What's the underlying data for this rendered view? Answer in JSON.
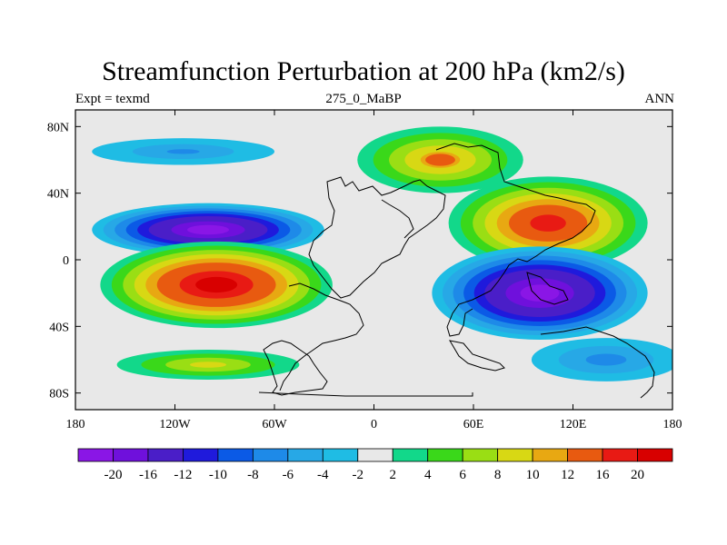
{
  "chart_data": {
    "type": "contour-map",
    "title": "Streamfunction Perturbation at 200 hPa (km2/s)",
    "subtitle_left": "Expt = texmd",
    "subtitle_center": "275_0_MaBP",
    "subtitle_right": "ANN",
    "xlim": [
      -180,
      180
    ],
    "ylim": [
      -90,
      90
    ],
    "x_ticks": [
      {
        "value": -180,
        "label": "180"
      },
      {
        "value": -120,
        "label": "120W"
      },
      {
        "value": -60,
        "label": "60W"
      },
      {
        "value": 0,
        "label": "0"
      },
      {
        "value": 60,
        "label": "60E"
      },
      {
        "value": 120,
        "label": "120E"
      },
      {
        "value": 180,
        "label": "180"
      }
    ],
    "y_ticks": [
      {
        "value": 80,
        "label": "80N"
      },
      {
        "value": 40,
        "label": "40N"
      },
      {
        "value": 0,
        "label": "0"
      },
      {
        "value": -40,
        "label": "40S"
      },
      {
        "value": -80,
        "label": "80S"
      }
    ],
    "colorbar": {
      "boundaries": [
        "-20",
        "-16",
        "-12",
        "-10",
        "-8",
        "-6",
        "-4",
        "-2",
        "2",
        "4",
        "6",
        "8",
        "10",
        "12",
        "16",
        "20"
      ],
      "colors": [
        "#8a16e6",
        "#6f10dc",
        "#4a1ec8",
        "#1f1adc",
        "#0b5ae6",
        "#1e8ae8",
        "#27a8e6",
        "#1fbce4",
        "#e8e8e8",
        "#12d88a",
        "#3ad81a",
        "#9ade14",
        "#d8d814",
        "#e8a812",
        "#e85a10",
        "#e81a14",
        "#d80000"
      ]
    },
    "features": [
      {
        "name": "Negative low north Pacific",
        "lon": -100,
        "lat": 18,
        "peak": -22
      },
      {
        "name": "Positive high south Pacific",
        "lon": -95,
        "lat": -15,
        "peak": 22
      },
      {
        "name": "Positive high Asia",
        "lon": 105,
        "lat": 22,
        "peak": 18
      },
      {
        "name": "Negative low Indian Ocean",
        "lon": 100,
        "lat": -20,
        "peak": -22
      },
      {
        "name": "Negative band north Pacific 60N",
        "lon": -115,
        "lat": 65,
        "peak": -6
      },
      {
        "name": "Positive Siberia",
        "lon": 40,
        "lat": 60,
        "peak": 12
      },
      {
        "name": "Positive south Pacific 60S",
        "lon": -100,
        "lat": -63,
        "peak": 9
      },
      {
        "name": "Negative south Indian 60S",
        "lon": 140,
        "lat": -60,
        "peak": -7
      }
    ]
  }
}
